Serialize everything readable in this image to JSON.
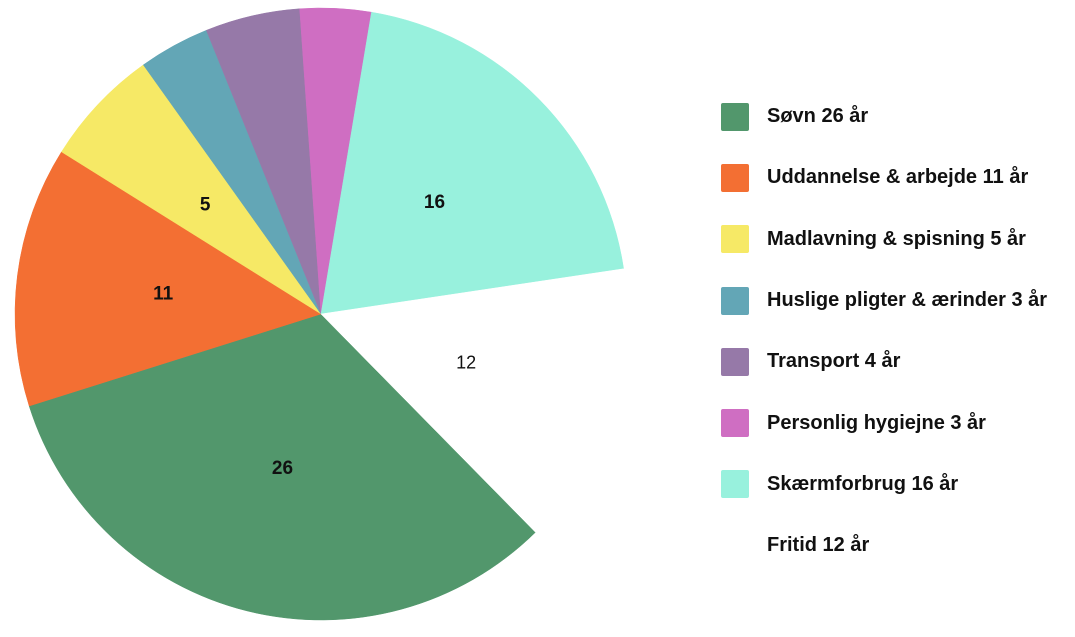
{
  "chart_data": {
    "type": "pie",
    "title": "",
    "slices": [
      {
        "label": "Søvn 26 år",
        "value": 26,
        "value_label": "26",
        "color": "#52976c"
      },
      {
        "label": "Uddannelse & arbejde 11 år",
        "value": 11,
        "value_label": "11",
        "color": "#f36f33"
      },
      {
        "label": "Madlavning & spisning 5 år",
        "value": 5,
        "value_label": "5",
        "color": "#f6e966"
      },
      {
        "label": "Huslige pligter & ærinder 3 år",
        "value": 3,
        "value_label": "",
        "color": "#63a6b6"
      },
      {
        "label": "Transport 4 år",
        "value": 4,
        "value_label": "",
        "color": "#9679a8"
      },
      {
        "label": "Personlig hygiejne 3 år",
        "value": 3,
        "value_label": "",
        "color": "#cf6ec2"
      },
      {
        "label": "Skærmforbrug 16 år",
        "value": 16,
        "value_label": "16",
        "color": "#98f1dd"
      },
      {
        "label": "Fritid 12 år",
        "value": 12,
        "value_label": "12",
        "color": "#ffffff"
      }
    ],
    "legend_position": "right"
  }
}
